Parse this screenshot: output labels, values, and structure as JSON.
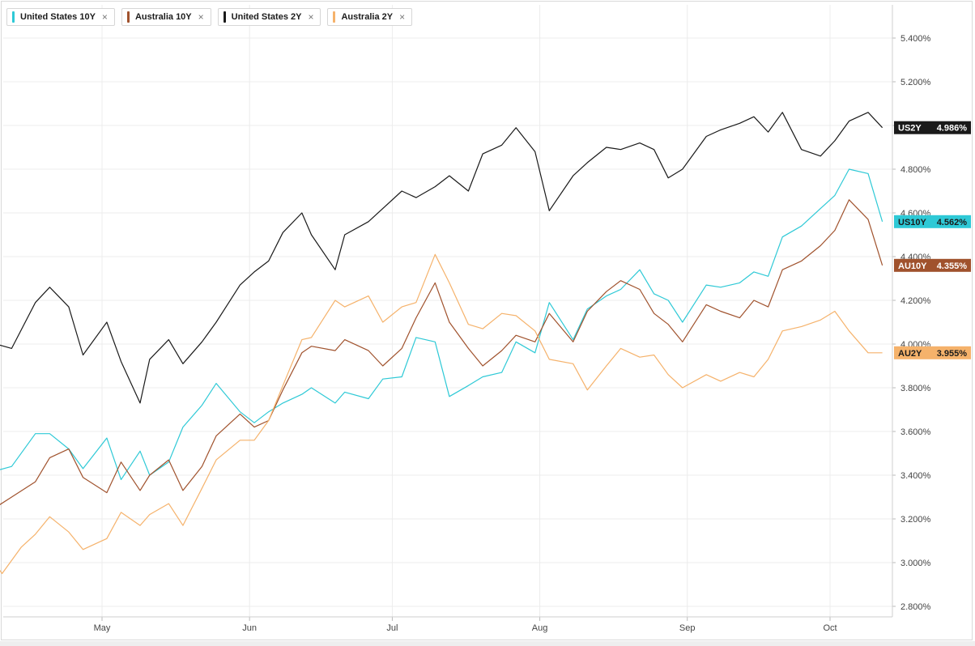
{
  "legend": {
    "items": [
      {
        "label": "United States 10Y",
        "close": "×",
        "color": "#2ec9d6"
      },
      {
        "label": "Australia 10Y",
        "close": "×",
        "color": "#a0522d"
      },
      {
        "label": "United States 2Y",
        "close": "×",
        "color": "#1a1a1a"
      },
      {
        "label": "Australia 2Y",
        "close": "×",
        "color": "#f5b26b"
      }
    ]
  },
  "chart_data": {
    "type": "line",
    "title": "",
    "xlabel": "",
    "ylabel": "",
    "ylim": [
      2.75,
      5.55
    ],
    "xlim": [
      "2023-04-07",
      "2023-10-12"
    ],
    "grid": true,
    "legend_position": "top-left",
    "yticks": [
      2.8,
      3.0,
      3.2,
      3.4,
      3.6,
      3.8,
      4.0,
      4.2,
      4.4,
      4.6,
      4.8,
      5.0,
      5.2,
      5.4
    ],
    "ytick_labels": [
      "2.800%",
      "3.000%",
      "3.200%",
      "3.400%",
      "3.600%",
      "3.800%",
      "4.000%",
      "4.200%",
      "4.400%",
      "4.600%",
      "4.800%",
      "5.000%",
      "5.200%",
      "5.400%"
    ],
    "xticks": [
      {
        "label": "May",
        "date": "2023-05-01"
      },
      {
        "label": "Jun",
        "date": "2023-06-01"
      },
      {
        "label": "Jul",
        "date": "2023-07-01"
      },
      {
        "label": "Aug",
        "date": "2023-08-01"
      },
      {
        "label": "Sep",
        "date": "2023-09-01"
      },
      {
        "label": "Oct",
        "date": "2023-10-01"
      }
    ],
    "series": [
      {
        "name": "United States 2Y",
        "tag": "US2Y",
        "last_label": "4.986%",
        "color": "#1a1a1a",
        "points": [
          [
            "2023-04-07",
            4.01
          ],
          [
            "2023-04-12",
            3.98
          ],
          [
            "2023-04-17",
            4.19
          ],
          [
            "2023-04-20",
            4.26
          ],
          [
            "2023-04-24",
            4.17
          ],
          [
            "2023-04-27",
            3.95
          ],
          [
            "2023-05-02",
            4.1
          ],
          [
            "2023-05-05",
            3.92
          ],
          [
            "2023-05-09",
            3.73
          ],
          [
            "2023-05-11",
            3.93
          ],
          [
            "2023-05-15",
            4.02
          ],
          [
            "2023-05-18",
            3.91
          ],
          [
            "2023-05-22",
            4.01
          ],
          [
            "2023-05-25",
            4.1
          ],
          [
            "2023-05-30",
            4.27
          ],
          [
            "2023-06-02",
            4.33
          ],
          [
            "2023-06-05",
            4.38
          ],
          [
            "2023-06-08",
            4.51
          ],
          [
            "2023-06-12",
            4.6
          ],
          [
            "2023-06-14",
            4.5
          ],
          [
            "2023-06-19",
            4.34
          ],
          [
            "2023-06-21",
            4.5
          ],
          [
            "2023-06-26",
            4.56
          ],
          [
            "2023-06-29",
            4.62
          ],
          [
            "2023-07-03",
            4.7
          ],
          [
            "2023-07-06",
            4.67
          ],
          [
            "2023-07-10",
            4.72
          ],
          [
            "2023-07-13",
            4.77
          ],
          [
            "2023-07-17",
            4.7
          ],
          [
            "2023-07-20",
            4.87
          ],
          [
            "2023-07-24",
            4.91
          ],
          [
            "2023-07-27",
            4.99
          ],
          [
            "2023-07-31",
            4.88
          ],
          [
            "2023-08-03",
            4.61
          ],
          [
            "2023-08-08",
            4.77
          ],
          [
            "2023-08-11",
            4.83
          ],
          [
            "2023-08-15",
            4.9
          ],
          [
            "2023-08-18",
            4.89
          ],
          [
            "2023-08-22",
            4.92
          ],
          [
            "2023-08-25",
            4.89
          ],
          [
            "2023-08-28",
            4.76
          ],
          [
            "2023-08-31",
            4.8
          ],
          [
            "2023-09-05",
            4.95
          ],
          [
            "2023-09-08",
            4.98
          ],
          [
            "2023-09-12",
            5.01
          ],
          [
            "2023-09-15",
            5.04
          ],
          [
            "2023-09-18",
            4.97
          ],
          [
            "2023-09-21",
            5.06
          ],
          [
            "2023-09-25",
            4.89
          ],
          [
            "2023-09-29",
            4.86
          ],
          [
            "2023-10-02",
            4.93
          ],
          [
            "2023-10-05",
            5.02
          ],
          [
            "2023-10-09",
            5.06
          ],
          [
            "2023-10-12",
            4.99
          ]
        ]
      },
      {
        "name": "United States 10Y",
        "tag": "US10Y",
        "last_label": "4.562%",
        "color": "#2ec9d6",
        "points": [
          [
            "2023-04-07",
            3.41
          ],
          [
            "2023-04-12",
            3.44
          ],
          [
            "2023-04-17",
            3.59
          ],
          [
            "2023-04-20",
            3.59
          ],
          [
            "2023-04-24",
            3.52
          ],
          [
            "2023-04-27",
            3.43
          ],
          [
            "2023-05-02",
            3.57
          ],
          [
            "2023-05-05",
            3.38
          ],
          [
            "2023-05-09",
            3.51
          ],
          [
            "2023-05-11",
            3.4
          ],
          [
            "2023-05-15",
            3.46
          ],
          [
            "2023-05-18",
            3.62
          ],
          [
            "2023-05-22",
            3.72
          ],
          [
            "2023-05-25",
            3.82
          ],
          [
            "2023-05-30",
            3.69
          ],
          [
            "2023-06-02",
            3.64
          ],
          [
            "2023-06-05",
            3.69
          ],
          [
            "2023-06-08",
            3.73
          ],
          [
            "2023-06-12",
            3.77
          ],
          [
            "2023-06-14",
            3.8
          ],
          [
            "2023-06-19",
            3.73
          ],
          [
            "2023-06-21",
            3.78
          ],
          [
            "2023-06-26",
            3.75
          ],
          [
            "2023-06-29",
            3.84
          ],
          [
            "2023-07-03",
            3.85
          ],
          [
            "2023-07-06",
            4.03
          ],
          [
            "2023-07-10",
            4.01
          ],
          [
            "2023-07-13",
            3.76
          ],
          [
            "2023-07-17",
            3.81
          ],
          [
            "2023-07-20",
            3.85
          ],
          [
            "2023-07-24",
            3.87
          ],
          [
            "2023-07-27",
            4.01
          ],
          [
            "2023-07-31",
            3.96
          ],
          [
            "2023-08-03",
            4.19
          ],
          [
            "2023-08-08",
            4.02
          ],
          [
            "2023-08-11",
            4.16
          ],
          [
            "2023-08-15",
            4.22
          ],
          [
            "2023-08-18",
            4.25
          ],
          [
            "2023-08-22",
            4.34
          ],
          [
            "2023-08-25",
            4.23
          ],
          [
            "2023-08-28",
            4.2
          ],
          [
            "2023-08-31",
            4.1
          ],
          [
            "2023-09-05",
            4.27
          ],
          [
            "2023-09-08",
            4.26
          ],
          [
            "2023-09-12",
            4.28
          ],
          [
            "2023-09-15",
            4.33
          ],
          [
            "2023-09-18",
            4.31
          ],
          [
            "2023-09-21",
            4.49
          ],
          [
            "2023-09-25",
            4.54
          ],
          [
            "2023-09-29",
            4.62
          ],
          [
            "2023-10-02",
            4.68
          ],
          [
            "2023-10-05",
            4.8
          ],
          [
            "2023-10-09",
            4.78
          ],
          [
            "2023-10-12",
            4.56
          ]
        ]
      },
      {
        "name": "Australia 10Y",
        "tag": "AU10Y",
        "last_label": "4.355%",
        "color": "#a0522d",
        "points": [
          [
            "2023-04-07",
            3.23
          ],
          [
            "2023-04-12",
            3.3
          ],
          [
            "2023-04-17",
            3.37
          ],
          [
            "2023-04-20",
            3.48
          ],
          [
            "2023-04-24",
            3.52
          ],
          [
            "2023-04-27",
            3.39
          ],
          [
            "2023-05-02",
            3.32
          ],
          [
            "2023-05-05",
            3.46
          ],
          [
            "2023-05-09",
            3.33
          ],
          [
            "2023-05-11",
            3.4
          ],
          [
            "2023-05-15",
            3.47
          ],
          [
            "2023-05-18",
            3.33
          ],
          [
            "2023-05-22",
            3.44
          ],
          [
            "2023-05-25",
            3.58
          ],
          [
            "2023-05-30",
            3.68
          ],
          [
            "2023-06-02",
            3.62
          ],
          [
            "2023-06-05",
            3.65
          ],
          [
            "2023-06-08",
            3.79
          ],
          [
            "2023-06-12",
            3.96
          ],
          [
            "2023-06-14",
            3.99
          ],
          [
            "2023-06-19",
            3.97
          ],
          [
            "2023-06-21",
            4.02
          ],
          [
            "2023-06-26",
            3.97
          ],
          [
            "2023-06-29",
            3.9
          ],
          [
            "2023-07-03",
            3.98
          ],
          [
            "2023-07-06",
            4.12
          ],
          [
            "2023-07-10",
            4.28
          ],
          [
            "2023-07-13",
            4.1
          ],
          [
            "2023-07-17",
            3.98
          ],
          [
            "2023-07-20",
            3.9
          ],
          [
            "2023-07-24",
            3.97
          ],
          [
            "2023-07-27",
            4.04
          ],
          [
            "2023-07-31",
            4.01
          ],
          [
            "2023-08-03",
            4.14
          ],
          [
            "2023-08-08",
            4.01
          ],
          [
            "2023-08-11",
            4.15
          ],
          [
            "2023-08-15",
            4.24
          ],
          [
            "2023-08-18",
            4.29
          ],
          [
            "2023-08-22",
            4.25
          ],
          [
            "2023-08-25",
            4.14
          ],
          [
            "2023-08-28",
            4.09
          ],
          [
            "2023-08-31",
            4.01
          ],
          [
            "2023-09-05",
            4.18
          ],
          [
            "2023-09-08",
            4.15
          ],
          [
            "2023-09-12",
            4.12
          ],
          [
            "2023-09-15",
            4.2
          ],
          [
            "2023-09-18",
            4.17
          ],
          [
            "2023-09-21",
            4.34
          ],
          [
            "2023-09-25",
            4.38
          ],
          [
            "2023-09-29",
            4.45
          ],
          [
            "2023-10-02",
            4.52
          ],
          [
            "2023-10-05",
            4.66
          ],
          [
            "2023-10-09",
            4.57
          ],
          [
            "2023-10-12",
            4.36
          ]
        ]
      },
      {
        "name": "Australia 2Y",
        "tag": "AU2Y",
        "last_label": "3.955%",
        "color": "#f5b26b",
        "points": [
          [
            "2023-04-07",
            3.04
          ],
          [
            "2023-04-10",
            2.95
          ],
          [
            "2023-04-14",
            3.07
          ],
          [
            "2023-04-17",
            3.13
          ],
          [
            "2023-04-20",
            3.21
          ],
          [
            "2023-04-24",
            3.14
          ],
          [
            "2023-04-27",
            3.06
          ],
          [
            "2023-05-02",
            3.11
          ],
          [
            "2023-05-05",
            3.23
          ],
          [
            "2023-05-09",
            3.17
          ],
          [
            "2023-05-11",
            3.22
          ],
          [
            "2023-05-15",
            3.27
          ],
          [
            "2023-05-18",
            3.17
          ],
          [
            "2023-05-22",
            3.34
          ],
          [
            "2023-05-25",
            3.47
          ],
          [
            "2023-05-30",
            3.56
          ],
          [
            "2023-06-02",
            3.56
          ],
          [
            "2023-06-05",
            3.65
          ],
          [
            "2023-06-08",
            3.81
          ],
          [
            "2023-06-12",
            4.02
          ],
          [
            "2023-06-14",
            4.03
          ],
          [
            "2023-06-19",
            4.2
          ],
          [
            "2023-06-21",
            4.17
          ],
          [
            "2023-06-26",
            4.22
          ],
          [
            "2023-06-29",
            4.1
          ],
          [
            "2023-07-03",
            4.17
          ],
          [
            "2023-07-06",
            4.19
          ],
          [
            "2023-07-10",
            4.41
          ],
          [
            "2023-07-13",
            4.28
          ],
          [
            "2023-07-17",
            4.09
          ],
          [
            "2023-07-20",
            4.07
          ],
          [
            "2023-07-24",
            4.14
          ],
          [
            "2023-07-27",
            4.13
          ],
          [
            "2023-07-31",
            4.06
          ],
          [
            "2023-08-03",
            3.93
          ],
          [
            "2023-08-08",
            3.91
          ],
          [
            "2023-08-11",
            3.79
          ],
          [
            "2023-08-15",
            3.9
          ],
          [
            "2023-08-18",
            3.98
          ],
          [
            "2023-08-22",
            3.94
          ],
          [
            "2023-08-25",
            3.95
          ],
          [
            "2023-08-28",
            3.86
          ],
          [
            "2023-08-31",
            3.8
          ],
          [
            "2023-09-05",
            3.86
          ],
          [
            "2023-09-08",
            3.83
          ],
          [
            "2023-09-12",
            3.87
          ],
          [
            "2023-09-15",
            3.85
          ],
          [
            "2023-09-18",
            3.93
          ],
          [
            "2023-09-21",
            4.06
          ],
          [
            "2023-09-25",
            4.08
          ],
          [
            "2023-09-29",
            4.11
          ],
          [
            "2023-10-02",
            4.15
          ],
          [
            "2023-10-05",
            4.06
          ],
          [
            "2023-10-09",
            3.96
          ],
          [
            "2023-10-12",
            3.96
          ]
        ]
      }
    ]
  }
}
